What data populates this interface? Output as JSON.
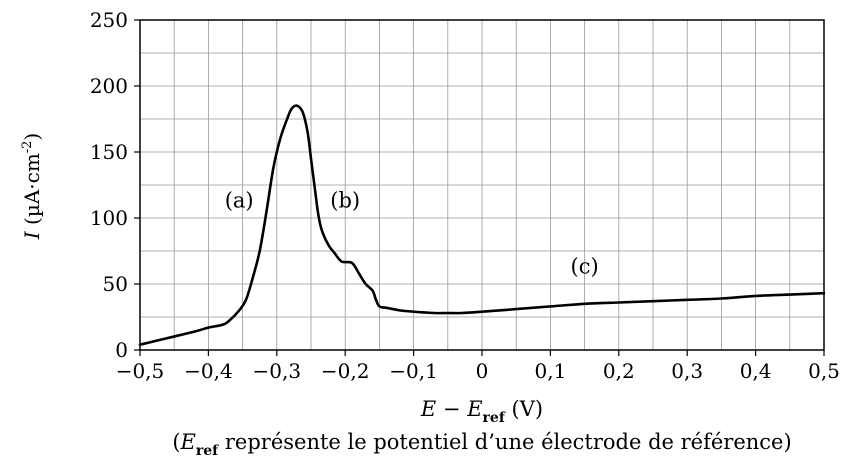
{
  "chart_data": {
    "type": "line",
    "title": "",
    "xlabel": {
      "main": "E − E",
      "sub": "ref",
      "unit": " (V)"
    },
    "ylabel": {
      "italic": "I",
      "unit": " (µA·cm",
      "sup": "-2",
      "close": ")"
    },
    "note": {
      "open": "(",
      "e": "E",
      "sub": "ref",
      "text": " représente le potentiel d’une électrode de référence)"
    },
    "xlim": [
      -0.5,
      0.5
    ],
    "ylim": [
      0,
      250
    ],
    "x_ticks": [
      -0.5,
      -0.4,
      -0.3,
      -0.2,
      -0.1,
      0,
      0.1,
      0.2,
      0.3,
      0.4,
      0.5
    ],
    "x_tick_labels": [
      "−0,5",
      "−0,4",
      "−0,3",
      "−0,2",
      "−0,1",
      "0",
      "0,1",
      "0,2",
      "0,3",
      "0,4",
      "0,5"
    ],
    "x_minor_step": 0.05,
    "y_ticks": [
      0,
      50,
      100,
      150,
      200,
      250
    ],
    "y_tick_labels": [
      "0",
      "50",
      "100",
      "150",
      "200",
      "250"
    ],
    "y_minor_step": 25,
    "grid": true,
    "annotations": [
      {
        "text": "(a)",
        "x": -0.355,
        "y": 108
      },
      {
        "text": "(b)",
        "x": -0.2,
        "y": 108
      },
      {
        "text": "(c)",
        "x": 0.15,
        "y": 58
      }
    ],
    "series": [
      {
        "x": [
          -0.5,
          -0.46,
          -0.42,
          -0.4,
          -0.38,
          -0.37,
          -0.355,
          -0.345,
          -0.335,
          -0.325,
          -0.315,
          -0.305,
          -0.295,
          -0.285,
          -0.278,
          -0.27,
          -0.262,
          -0.255,
          -0.25,
          -0.245,
          -0.24,
          -0.235,
          -0.225,
          -0.215,
          -0.205,
          -0.19,
          -0.18,
          -0.17,
          -0.16,
          -0.155,
          -0.15,
          -0.14,
          -0.12,
          -0.1,
          -0.07,
          -0.05,
          -0.03,
          0,
          0.05,
          0.1,
          0.15,
          0.2,
          0.25,
          0.3,
          0.35,
          0.4,
          0.45,
          0.5
        ],
        "y": [
          4,
          9,
          14,
          17,
          19,
          22,
          30,
          38,
          55,
          75,
          105,
          138,
          160,
          175,
          183,
          185,
          180,
          165,
          145,
          125,
          105,
          92,
          80,
          73,
          67,
          66,
          58,
          50,
          45,
          38,
          33,
          32,
          30,
          29,
          28,
          28,
          28,
          29,
          31,
          33,
          35,
          36,
          37,
          38,
          39,
          41,
          42,
          43
        ]
      }
    ]
  }
}
